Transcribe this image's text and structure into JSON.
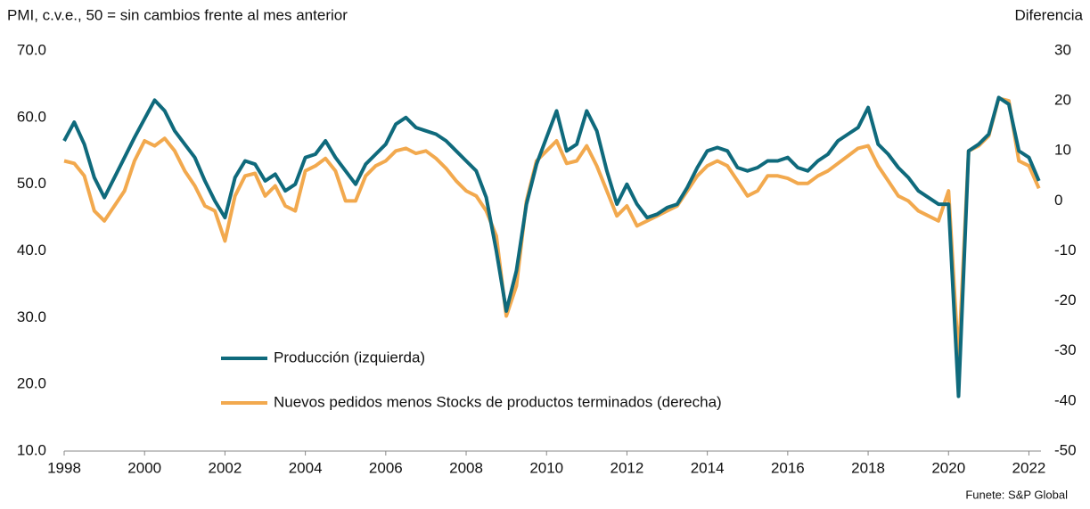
{
  "chart_data": {
    "type": "line",
    "title": "PMI, c.v.e., 50 = sin cambios frente al mes anterior",
    "y2_label": "Diferencia",
    "source": "Funete: S&P Global",
    "x": [
      1998.0,
      1998.25,
      1998.5,
      1998.75,
      1999.0,
      1999.25,
      1999.5,
      1999.75,
      2000.0,
      2000.25,
      2000.5,
      2000.75,
      2001.0,
      2001.25,
      2001.5,
      2001.75,
      2002.0,
      2002.25,
      2002.5,
      2002.75,
      2003.0,
      2003.25,
      2003.5,
      2003.75,
      2004.0,
      2004.25,
      2004.5,
      2004.75,
      2005.0,
      2005.25,
      2005.5,
      2005.75,
      2006.0,
      2006.25,
      2006.5,
      2006.75,
      2007.0,
      2007.25,
      2007.5,
      2007.75,
      2008.0,
      2008.25,
      2008.5,
      2008.75,
      2009.0,
      2009.25,
      2009.5,
      2009.75,
      2010.0,
      2010.25,
      2010.5,
      2010.75,
      2011.0,
      2011.25,
      2011.5,
      2011.75,
      2012.0,
      2012.25,
      2012.5,
      2012.75,
      2013.0,
      2013.25,
      2013.5,
      2013.75,
      2014.0,
      2014.25,
      2014.5,
      2014.75,
      2015.0,
      2015.25,
      2015.5,
      2015.75,
      2016.0,
      2016.25,
      2016.5,
      2016.75,
      2017.0,
      2017.25,
      2017.5,
      2017.75,
      2018.0,
      2018.25,
      2018.5,
      2018.75,
      2019.0,
      2019.25,
      2019.5,
      2019.75,
      2020.0,
      2020.25,
      2020.5,
      2020.75,
      2021.0,
      2021.25,
      2021.5,
      2021.75,
      2022.0,
      2022.25
    ],
    "series": [
      {
        "name": "Producción (izquierda)",
        "color": "#0f6a7c",
        "axis": "y",
        "values": [
          56.5,
          59.3,
          56,
          51,
          48,
          51,
          54,
          57,
          59.8,
          62.6,
          61,
          58,
          56,
          54,
          50.5,
          47.5,
          45,
          51,
          53.5,
          53,
          50.5,
          51.5,
          49,
          50,
          54,
          54.5,
          56.5,
          54,
          52,
          50,
          53,
          54.5,
          56,
          59,
          60,
          58.5,
          58,
          57.5,
          56.5,
          55,
          53.5,
          52,
          48,
          40,
          31,
          37,
          47,
          53,
          57,
          61,
          55,
          56,
          61,
          58,
          52,
          47,
          50,
          47,
          45,
          45.5,
          46.5,
          47,
          49.5,
          52.5,
          55,
          55.5,
          55,
          52.5,
          52,
          52.5,
          53.5,
          53.5,
          54,
          52.5,
          52,
          53.5,
          54.5,
          56.5,
          57.5,
          58.5,
          61.5,
          56,
          54.5,
          52.5,
          51,
          49,
          48,
          47,
          47,
          18.2,
          55,
          56,
          57.5,
          63,
          62,
          55,
          54,
          50.5
        ]
      },
      {
        "name": "Nuevos pedidos menos Stocks de productos terminados (derecha)",
        "color": "#f2a94e",
        "axis": "y2",
        "values": [
          8,
          7.5,
          5,
          -2,
          -4,
          -1,
          2,
          8,
          12,
          11,
          12.5,
          10,
          6,
          3,
          -1,
          -2,
          -8,
          1,
          5,
          5.5,
          1,
          3,
          -1,
          -2,
          6,
          7,
          8.5,
          6,
          0,
          0,
          5,
          7,
          8,
          10,
          10.5,
          9.5,
          10,
          8.5,
          6.5,
          4,
          2,
          1,
          -2,
          -7,
          -23,
          -17,
          0,
          8,
          10,
          12,
          7.5,
          8,
          11,
          7,
          2,
          -3,
          -1,
          -5,
          -4,
          -3,
          -2,
          -1,
          2,
          5,
          7,
          8,
          7,
          4,
          1,
          2,
          5,
          5,
          4.5,
          3.5,
          3.5,
          5,
          6,
          7.5,
          9,
          10.5,
          11,
          7,
          4,
          1,
          0,
          -2,
          -3,
          -4,
          2,
          -32,
          10,
          11,
          13,
          20.5,
          20,
          8,
          7,
          2.5
        ]
      }
    ],
    "xlim": [
      1998,
      2022.3
    ],
    "xticks": [
      1998,
      2000,
      2002,
      2004,
      2006,
      2008,
      2010,
      2012,
      2014,
      2016,
      2018,
      2020,
      2022
    ],
    "ylim": [
      10,
      70
    ],
    "yticks": [
      {
        "value": 10,
        "label": "10.0"
      },
      {
        "value": 20,
        "label": "20.0"
      },
      {
        "value": 30,
        "label": "30.0"
      },
      {
        "value": 40,
        "label": "40.0"
      },
      {
        "value": 50,
        "label": "50.0"
      },
      {
        "value": 60,
        "label": "60.0"
      },
      {
        "value": 70,
        "label": "70.0"
      }
    ],
    "y2lim": [
      -50,
      30
    ],
    "y2ticks": [
      -50,
      -40,
      -30,
      -20,
      -10,
      0,
      10,
      20,
      30
    ],
    "grid": false
  }
}
